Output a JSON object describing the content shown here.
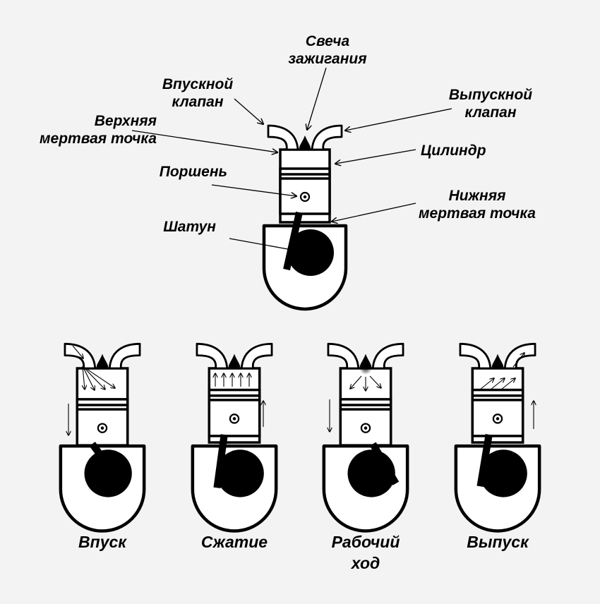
{
  "labels": {
    "spark_plug": [
      "Свеча",
      "зажигания"
    ],
    "intake_valve": [
      "Впускной",
      "клапан"
    ],
    "exhaust_valve": [
      "Выпускной",
      "клапан"
    ],
    "tdc": [
      "Верхняя",
      "мертвая точка"
    ],
    "cylinder": "Цилиндр",
    "piston": "Поршень",
    "bdc": [
      "Нижняя",
      "мертвая точка"
    ],
    "connecting_rod": "Шатун"
  },
  "strokes": [
    {
      "label": [
        "Впуск"
      ]
    },
    {
      "label": [
        "Сжатие"
      ]
    },
    {
      "label": [
        "Рабочий",
        "ход"
      ]
    },
    {
      "label": [
        "Выпуск"
      ]
    }
  ]
}
